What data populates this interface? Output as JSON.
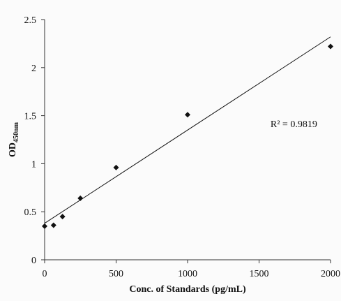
{
  "chart_data": {
    "type": "scatter",
    "title": "",
    "xlabel": "Conc. of Standards (pg/mL)",
    "ylabel": {
      "main": "OD",
      "subscript": "450nm"
    },
    "xlim": [
      0,
      2000
    ],
    "ylim": [
      0,
      2.5
    ],
    "x_ticks": [
      0,
      500,
      1000,
      1500,
      2000
    ],
    "y_ticks": [
      0,
      0.5,
      1,
      1.5,
      2,
      2.5
    ],
    "x_tick_labels": [
      "0",
      "500",
      "1000",
      "1500",
      "2000"
    ],
    "y_tick_labels": [
      "0",
      "0.5",
      "1",
      "1.5",
      "2",
      "2.5"
    ],
    "grid": false,
    "legend": false,
    "marker": "diamond",
    "marker_color": "#111111",
    "series": [
      {
        "x": [
          0,
          62.5,
          125,
          250,
          500,
          1000,
          2000
        ],
        "y": [
          0.35,
          0.36,
          0.45,
          0.64,
          0.96,
          1.51,
          2.22
        ]
      }
    ],
    "trendline": {
      "type": "linear",
      "x": [
        0,
        2000
      ],
      "y": [
        0.38,
        2.32
      ],
      "color": "#111111"
    },
    "annotations": [
      {
        "text": "R² = 0.9819",
        "x": 1580,
        "y": 1.38
      }
    ]
  }
}
